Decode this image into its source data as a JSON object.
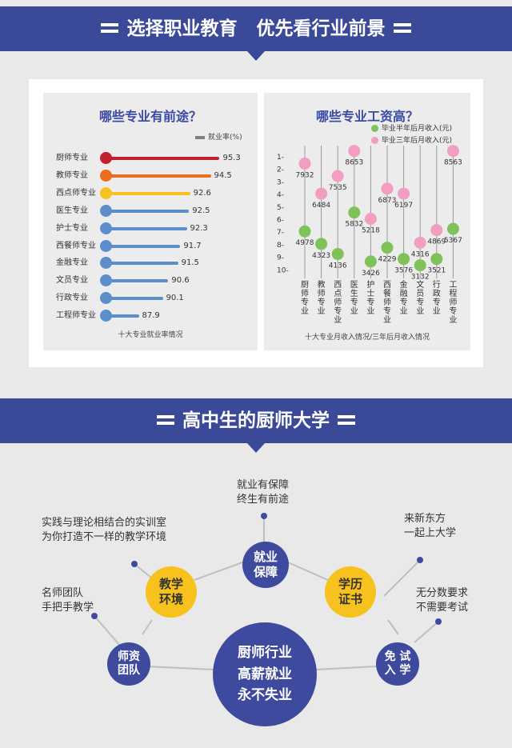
{
  "header1": {
    "title": "选择职业教育   优先看行业前景"
  },
  "header2": {
    "title": "高中生的厨师大学"
  },
  "colors": {
    "banner": "#3a4a99",
    "accent_blue": "#3e4a9e",
    "yellow": "#f7c11e",
    "green": "#7fc25a",
    "pink": "#f19ec2"
  },
  "chart_data": [
    {
      "type": "bar",
      "title": "哪些专业有前途？",
      "legend": "就业率(%)",
      "caption": "十大专业就业率情况",
      "categories": [
        "厨师专业",
        "教师专业",
        "西点师专业",
        "医生专业",
        "护士专业",
        "西餐师专业",
        "金融专业",
        "文员专业",
        "行政专业",
        "工程师专业"
      ],
      "values": [
        95.3,
        94.5,
        92.6,
        92.5,
        92.3,
        91.7,
        91.5,
        90.6,
        90.1,
        87.9
      ],
      "value_labels": [
        "95.3",
        "94.5",
        "92.6",
        "92.5",
        "92.3",
        "91.7",
        "91.5",
        "90.6",
        "90.1",
        "87.9"
      ],
      "colors": [
        "#c21f2f",
        "#ec6d1f",
        "#f7c11e",
        "#5b8ecb",
        "#5b8ecb",
        "#5b8ecb",
        "#5b8ecb",
        "#5b8ecb",
        "#5b8ecb",
        "#5b8ecb"
      ],
      "xlim": [
        85,
        96
      ]
    },
    {
      "type": "scatter",
      "title": "哪些专业工资高？",
      "caption": "十大专业月收入情况/三年后月收入情况",
      "categories": [
        "厨师专业",
        "教师专业",
        "西点师专业",
        "医生专业",
        "护士专业",
        "西餐师专业",
        "金融专业",
        "文员专业",
        "行政专业",
        "工程师专业"
      ],
      "y_ticks": [
        "1-",
        "2-",
        "3-",
        "4-",
        "5-",
        "6-",
        "7-",
        "8-",
        "9-",
        "10-"
      ],
      "series": [
        {
          "name": "毕业半年后月收入(元)",
          "color": "#7fc25a",
          "values": [
            4978,
            4323,
            4136,
            5832,
            3426,
            4229,
            3576,
            3132,
            3521,
            5367
          ],
          "labels": [
            "4978",
            "4323",
            "4136",
            "5832",
            "3426",
            "4229",
            "3576",
            "3132",
            "3521",
            "5367"
          ],
          "ranks": [
            7,
            8,
            8.8,
            5.5,
            9.4,
            8.3,
            9.2,
            9.7,
            9.2,
            6.8
          ]
        },
        {
          "name": "毕业三年后月收入(元)",
          "color": "#f19ec2",
          "values": [
            7932,
            6484,
            7535,
            8653,
            5218,
            6873,
            6197,
            4316,
            4869,
            8563
          ],
          "labels": [
            "7932",
            "6484",
            "7535",
            "8653",
            "5218",
            "6873",
            "6197",
            "4316",
            "4869",
            "8563"
          ],
          "ranks": [
            1.6,
            4,
            2.6,
            0.6,
            6,
            3.6,
            4,
            7.9,
            6.9,
            0.6
          ]
        }
      ]
    }
  ],
  "diagram": {
    "center": "厨师行业\n高薪就业\n永不失业",
    "nodes": {
      "employment": "就业\n保障",
      "teaching": "教学\n环境",
      "degree": "学历\n证书",
      "faculty": "师资\n团队",
      "exam_free": "免 试\n入 学"
    },
    "notes": {
      "employment": "就业有保障\n终生有前途",
      "teaching": "实践与理论相结合的实训室\n为你打造不一样的教学环境",
      "degree": "来新东方\n一起上大学",
      "faculty": "名师团队\n手把手教学",
      "exam_free": "无分数要求\n不需要考试"
    }
  }
}
